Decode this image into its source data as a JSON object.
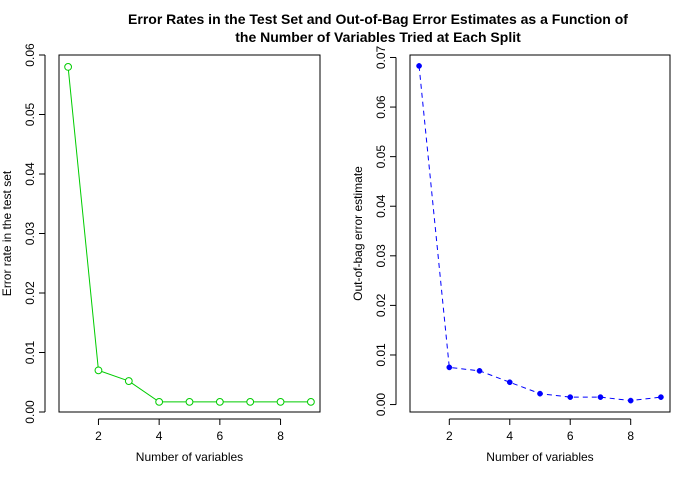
{
  "title_line1": "Error Rates in the Test Set and Out-of-Bag Error Estimates as a Function of",
  "title_line2": "the Number of Variables Tried at Each Split",
  "chart_data": [
    {
      "type": "line",
      "xlabel": "Number of variables",
      "ylabel": "Error rate in the test set",
      "x": [
        1,
        2,
        3,
        4,
        5,
        6,
        7,
        8,
        9
      ],
      "y": [
        0.058,
        0.007,
        0.0052,
        0.0017,
        0.0017,
        0.0017,
        0.0017,
        0.0017,
        0.0017
      ],
      "xlim": [
        0.7,
        9.3
      ],
      "ylim": [
        0,
        0.06
      ],
      "xticks": [
        2,
        4,
        6,
        8
      ],
      "yticks": [
        0.0,
        0.01,
        0.02,
        0.03,
        0.04,
        0.05,
        0.06
      ],
      "ytick_labels": [
        "0.00",
        "0.01",
        "0.02",
        "0.03",
        "0.04",
        "0.05",
        "0.06"
      ],
      "color": "#00cc00",
      "marker": "open-circle",
      "linestyle": "solid"
    },
    {
      "type": "line",
      "xlabel": "Number of variables",
      "ylabel": "Out-of-bag error estimate",
      "x": [
        1,
        2,
        3,
        4,
        5,
        6,
        7,
        8,
        9
      ],
      "y": [
        0.0683,
        0.0075,
        0.0068,
        0.0045,
        0.0022,
        0.0015,
        0.0015,
        0.0008,
        0.0015
      ],
      "xlim": [
        0.7,
        9.3
      ],
      "ylim": [
        -0.0015,
        0.0705
      ],
      "xticks": [
        2,
        4,
        6,
        8
      ],
      "yticks": [
        0.0,
        0.01,
        0.02,
        0.03,
        0.04,
        0.05,
        0.06,
        0.07
      ],
      "ytick_labels": [
        "0.00",
        "0.01",
        "0.02",
        "0.03",
        "0.04",
        "0.05",
        "0.06",
        "0.07"
      ],
      "color": "#0000ff",
      "marker": "filled-circle",
      "linestyle": "dashed"
    }
  ]
}
